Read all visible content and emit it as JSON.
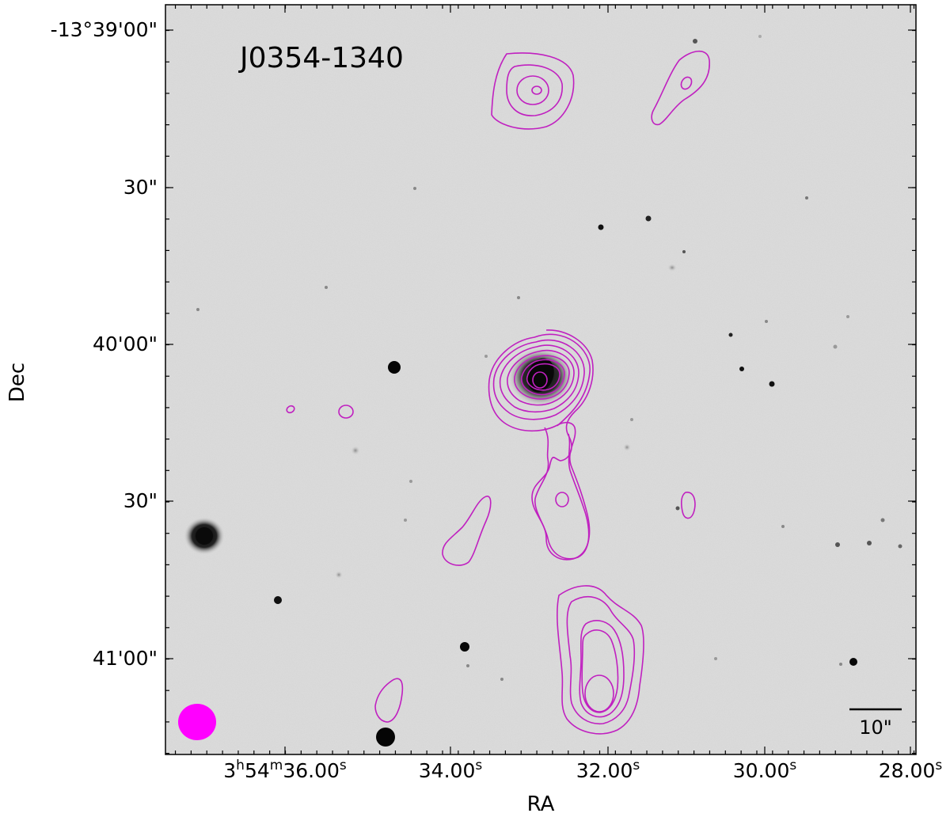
{
  "title": "J0354-1340",
  "axes": {
    "xlabel": "RA",
    "ylabel": "Dec",
    "xticks": [
      "3h54m36.00s",
      "34.00s",
      "32.00s",
      "30.00s",
      "28.00s"
    ],
    "yticks": [
      "-13°39'00\"",
      "30\"",
      "40'00\"",
      "30\"",
      "41'00\""
    ]
  },
  "scale_bar": {
    "label": "10\""
  },
  "colors": {
    "contour": "#c020c0",
    "beam": "#ff00ff",
    "background": "#dcdcdc"
  },
  "beam_icon": "ellipse",
  "image_type": "optical grayscale with radio contours"
}
